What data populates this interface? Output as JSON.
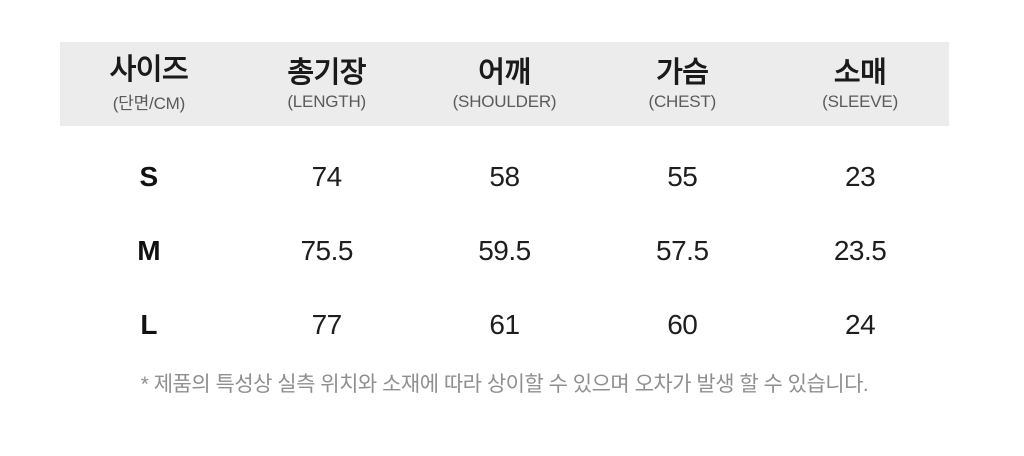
{
  "chart_data": {
    "type": "table",
    "unit": "CM",
    "columns": [
      {
        "title": "사이즈",
        "subtitle": "(단면/CM)"
      },
      {
        "title": "총기장",
        "subtitle": "(LENGTH)"
      },
      {
        "title": "어깨",
        "subtitle": "(SHOULDER)"
      },
      {
        "title": "가슴",
        "subtitle": "(CHEST)"
      },
      {
        "title": "소매",
        "subtitle": "(SLEEVE)"
      }
    ],
    "rows": [
      {
        "size": "S",
        "length": "74",
        "shoulder": "58",
        "chest": "55",
        "sleeve": "23"
      },
      {
        "size": "M",
        "length": "75.5",
        "shoulder": "59.5",
        "chest": "57.5",
        "sleeve": "23.5"
      },
      {
        "size": "L",
        "length": "77",
        "shoulder": "61",
        "chest": "60",
        "sleeve": "24"
      }
    ],
    "footnote": "* 제품의 특성상 실측 위치와 소재에 따라 상이할 수 있으며 오차가 발생 할 수 있습니다."
  },
  "colors": {
    "page_bg": "#ffffff",
    "header_bg": "#ececec",
    "title_text": "#1a1a1a",
    "subtitle_text": "#5a5a5a",
    "value_text": "#1e1e1e",
    "footnote_text": "#8f8f8f"
  }
}
